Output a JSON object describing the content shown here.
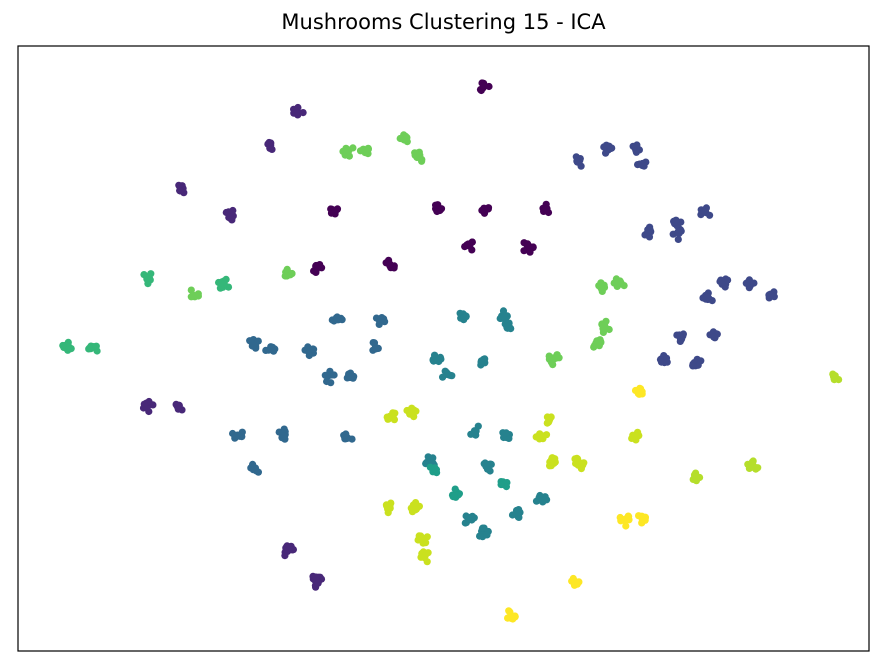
{
  "chart_data": {
    "type": "scatter",
    "title": "Mushrooms Clustering 15 - ICA",
    "xlabel": "",
    "ylabel": "",
    "axes_visible": false,
    "grid": false,
    "legend": "none",
    "xlim": [
      0,
      100
    ],
    "ylim": [
      0,
      100
    ],
    "colormap": "viridis",
    "series": [
      {
        "color": "#440154",
        "points": [
          [
            54.7,
            93.3
          ],
          [
            37.0,
            72.6
          ],
          [
            49.4,
            72.9
          ],
          [
            55.0,
            72.8
          ],
          [
            61.9,
            73.0
          ],
          [
            52.9,
            67.0
          ],
          [
            59.9,
            66.8
          ],
          [
            43.7,
            63.9
          ],
          [
            35.0,
            63.3
          ]
        ]
      },
      {
        "color": "#482878",
        "points": [
          [
            32.8,
            88.9
          ],
          [
            29.7,
            83.6
          ],
          [
            19.0,
            76.1
          ],
          [
            25.0,
            71.9
          ],
          [
            18.9,
            40.6
          ],
          [
            15.3,
            40.5
          ],
          [
            31.7,
            16.5
          ],
          [
            35.0,
            11.8
          ],
          [
            35.2,
            11.4
          ]
        ]
      },
      {
        "color": "#3e4989",
        "points": [
          [
            69.3,
            82.9
          ],
          [
            72.6,
            83.0
          ],
          [
            65.7,
            80.8
          ],
          [
            73.2,
            80.5
          ],
          [
            80.8,
            72.3
          ],
          [
            77.3,
            70.9
          ],
          [
            74.2,
            69.3
          ],
          [
            77.6,
            68.9
          ],
          [
            83.0,
            60.7
          ],
          [
            86.1,
            60.6
          ],
          [
            88.5,
            58.9
          ],
          [
            81.1,
            58.4
          ],
          [
            77.8,
            51.7
          ],
          [
            81.9,
            51.8
          ],
          [
            75.9,
            47.9
          ],
          [
            79.7,
            47.4
          ]
        ]
      },
      {
        "color": "#31688e",
        "points": [
          [
            37.5,
            54.9
          ],
          [
            42.5,
            54.5
          ],
          [
            27.6,
            50.8
          ],
          [
            29.8,
            49.9
          ],
          [
            34.3,
            49.5
          ],
          [
            42.0,
            50.2
          ],
          [
            36.7,
            45.3
          ],
          [
            39.0,
            45.2
          ],
          [
            25.8,
            35.7
          ],
          [
            31.1,
            35.9
          ],
          [
            38.6,
            35.2
          ],
          [
            27.8,
            30.2
          ]
        ]
      },
      {
        "color": "#26828e",
        "points": [
          [
            52.2,
            55.1
          ],
          [
            57.1,
            55.4
          ],
          [
            57.5,
            53.4
          ],
          [
            49.2,
            48.0
          ],
          [
            50.4,
            45.7
          ],
          [
            54.5,
            47.9
          ],
          [
            53.8,
            36.3
          ],
          [
            57.3,
            35.4
          ],
          [
            48.5,
            31.4
          ],
          [
            55.1,
            30.4
          ],
          [
            61.6,
            25.0
          ],
          [
            58.7,
            23.0
          ],
          [
            53.0,
            21.8
          ],
          [
            54.8,
            19.5
          ]
        ]
      },
      {
        "color": "#1f9e89",
        "points": [
          [
            48.9,
            30.1
          ],
          [
            56.8,
            27.5
          ],
          [
            51.4,
            25.9
          ]
        ]
      },
      {
        "color": "#35b779",
        "points": [
          [
            5.8,
            50.5
          ],
          [
            8.9,
            50.3
          ],
          [
            15.3,
            61.6
          ],
          [
            24.2,
            60.5
          ]
        ]
      },
      {
        "color": "#6ece58",
        "points": [
          [
            45.3,
            84.5
          ],
          [
            40.9,
            82.7
          ],
          [
            47.0,
            81.7
          ],
          [
            38.8,
            82.6
          ],
          [
            20.6,
            58.8
          ],
          [
            31.5,
            62.4
          ],
          [
            68.5,
            60.2
          ],
          [
            70.7,
            60.9
          ],
          [
            68.9,
            53.6
          ],
          [
            67.9,
            50.9
          ],
          [
            62.9,
            48.3
          ]
        ]
      },
      {
        "color": "#b5de2b",
        "points": [
          [
            95.9,
            45.1
          ],
          [
            79.7,
            28.8
          ],
          [
            86.4,
            30.7
          ]
        ]
      },
      {
        "color": "#cae11f",
        "points": [
          [
            46.1,
            39.4
          ],
          [
            62.4,
            38.1
          ],
          [
            61.5,
            35.5
          ],
          [
            62.6,
            31.3
          ],
          [
            65.9,
            31.0
          ],
          [
            72.6,
            35.6
          ],
          [
            43.6,
            23.7
          ],
          [
            46.9,
            23.6
          ],
          [
            47.6,
            18.5
          ],
          [
            47.8,
            15.5
          ],
          [
            43.9,
            38.9
          ]
        ]
      },
      {
        "color": "#fde725",
        "points": [
          [
            71.3,
            21.6
          ],
          [
            73.4,
            21.8
          ],
          [
            65.4,
            11.4
          ],
          [
            57.8,
            5.7
          ],
          [
            72.8,
            42.6
          ]
        ]
      }
    ]
  }
}
